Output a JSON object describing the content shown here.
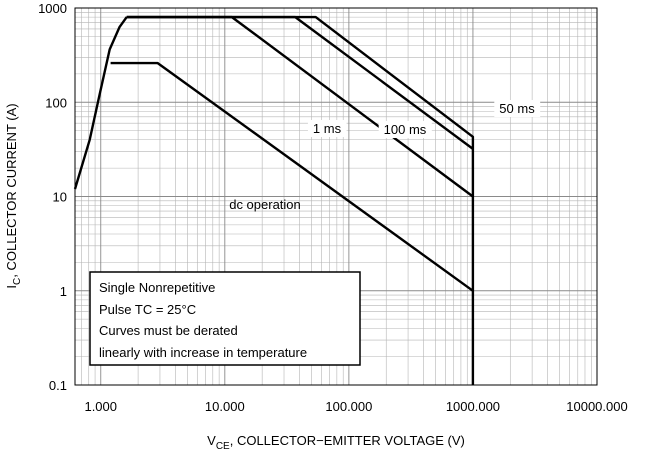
{
  "chart_data": {
    "type": "line",
    "x_label": {
      "main": "V",
      "sub": "CE",
      "rest": ", COLLECTOR−EMITTER VOLTAGE (V)"
    },
    "y_label": {
      "main": "I",
      "sub": "C",
      "rest": ", COLLECTOR CURRENT (A)"
    },
    "log_x": true,
    "log_y": true,
    "grid": true,
    "xlim": [
      0.62,
      10000
    ],
    "ylim": [
      0.1,
      1000
    ],
    "xticks": [
      {
        "value": 1,
        "label": "1.000"
      },
      {
        "value": 10,
        "label": "10.000"
      },
      {
        "value": 100,
        "label": "100.000"
      },
      {
        "value": 1000,
        "label": "1000.000"
      },
      {
        "value": 10000,
        "label": "10000.000"
      }
    ],
    "yticks": [
      0.1,
      1,
      10,
      100,
      1000
    ],
    "series": [
      {
        "color": "#000000",
        "x": [
          0.62,
          0.815,
          0.98,
          1.18,
          1.42,
          1.62
        ],
        "values": [
          12,
          40,
          122,
          364,
          630,
          800
        ]
      },
      {
        "name": "dc operation",
        "color": "#000000",
        "x": [
          1.2,
          2.88,
          1000
        ],
        "values": [
          260,
          260,
          1
        ]
      },
      {
        "name": "1 ms",
        "color": "#000000",
        "x": [
          1.62,
          11.4,
          1000
        ],
        "values": [
          800,
          800,
          10
        ]
      },
      {
        "name": "100 ms",
        "color": "#000000",
        "x": [
          1.62,
          37,
          1000
        ],
        "values": [
          800,
          800,
          32
        ]
      },
      {
        "name": "50 ms",
        "color": "#000000",
        "x": [
          1.62,
          54,
          1000,
          1000
        ],
        "values": [
          800,
          800,
          43,
          0.1
        ]
      }
    ],
    "notes": [
      "Single Nonrepetitive",
      "Pulse TC = 25°C",
      "Curves must be derated",
      "linearly with increase in temperature"
    ]
  }
}
